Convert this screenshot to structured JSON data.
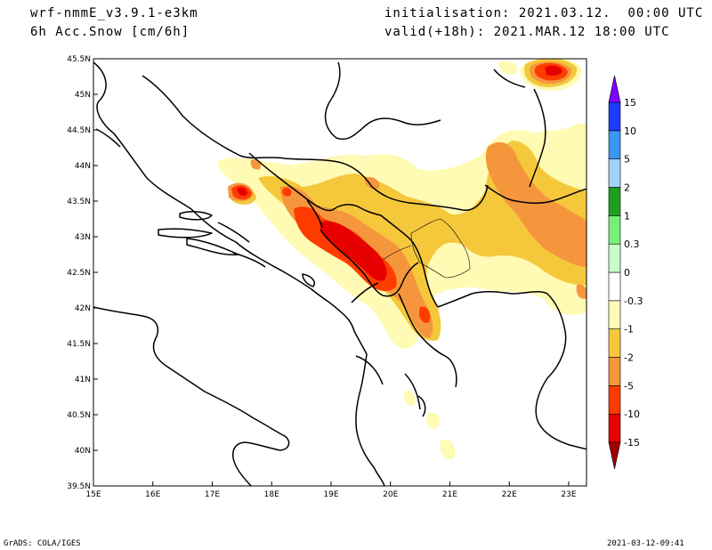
{
  "header": {
    "model": "wrf-nmmE_v3.9.1-e3km",
    "variable": "6h Acc.Snow [cm/6h]",
    "init": "initialisation: 2021.03.12.  00:00 UTC",
    "valid": "valid(+18h): 2021.MAR.12 18:00 UTC"
  },
  "footer": {
    "credit": "GrADS: COLA/IGES",
    "timestamp": "2021-03-12-09:41"
  },
  "map": {
    "lon_range": [
      15,
      23.3
    ],
    "lat_range": [
      39.5,
      45.5
    ],
    "lon_ticks": [
      {
        "v": 15,
        "label": "15E"
      },
      {
        "v": 16,
        "label": "16E"
      },
      {
        "v": 17,
        "label": "17E"
      },
      {
        "v": 18,
        "label": "18E"
      },
      {
        "v": 19,
        "label": "19E"
      },
      {
        "v": 20,
        "label": "20E"
      },
      {
        "v": 21,
        "label": "21E"
      },
      {
        "v": 22,
        "label": "22E"
      },
      {
        "v": 23,
        "label": "23E"
      }
    ],
    "lat_ticks": [
      {
        "v": 39.5,
        "label": "39.5N"
      },
      {
        "v": 40,
        "label": "40N"
      },
      {
        "v": 40.5,
        "label": "40.5N"
      },
      {
        "v": 41,
        "label": "41N"
      },
      {
        "v": 41.5,
        "label": "41.5N"
      },
      {
        "v": 42,
        "label": "42N"
      },
      {
        "v": 42.5,
        "label": "42.5N"
      },
      {
        "v": 43,
        "label": "43N"
      },
      {
        "v": 43.5,
        "label": "43.5N"
      },
      {
        "v": 44,
        "label": "44N"
      },
      {
        "v": 44.5,
        "label": "44.5N"
      },
      {
        "v": 45,
        "label": "45N"
      },
      {
        "v": 45.5,
        "label": "45.5N"
      }
    ]
  },
  "colorbar": {
    "colors": [
      "#a00000",
      "#e60000",
      "#ff3c00",
      "#f5963c",
      "#f5c83c",
      "#fffab4",
      "#ffffff",
      "#c8ffc8",
      "#78f078",
      "#1ea01e",
      "#a0d2fa",
      "#3c96f5",
      "#1e3cff",
      "#7f00ff"
    ],
    "labels": [
      "-15",
      "-10",
      "-5",
      "-2",
      "-1",
      "-0.3",
      "0",
      "0.3",
      "1",
      "2",
      "5",
      "10",
      "15"
    ]
  }
}
